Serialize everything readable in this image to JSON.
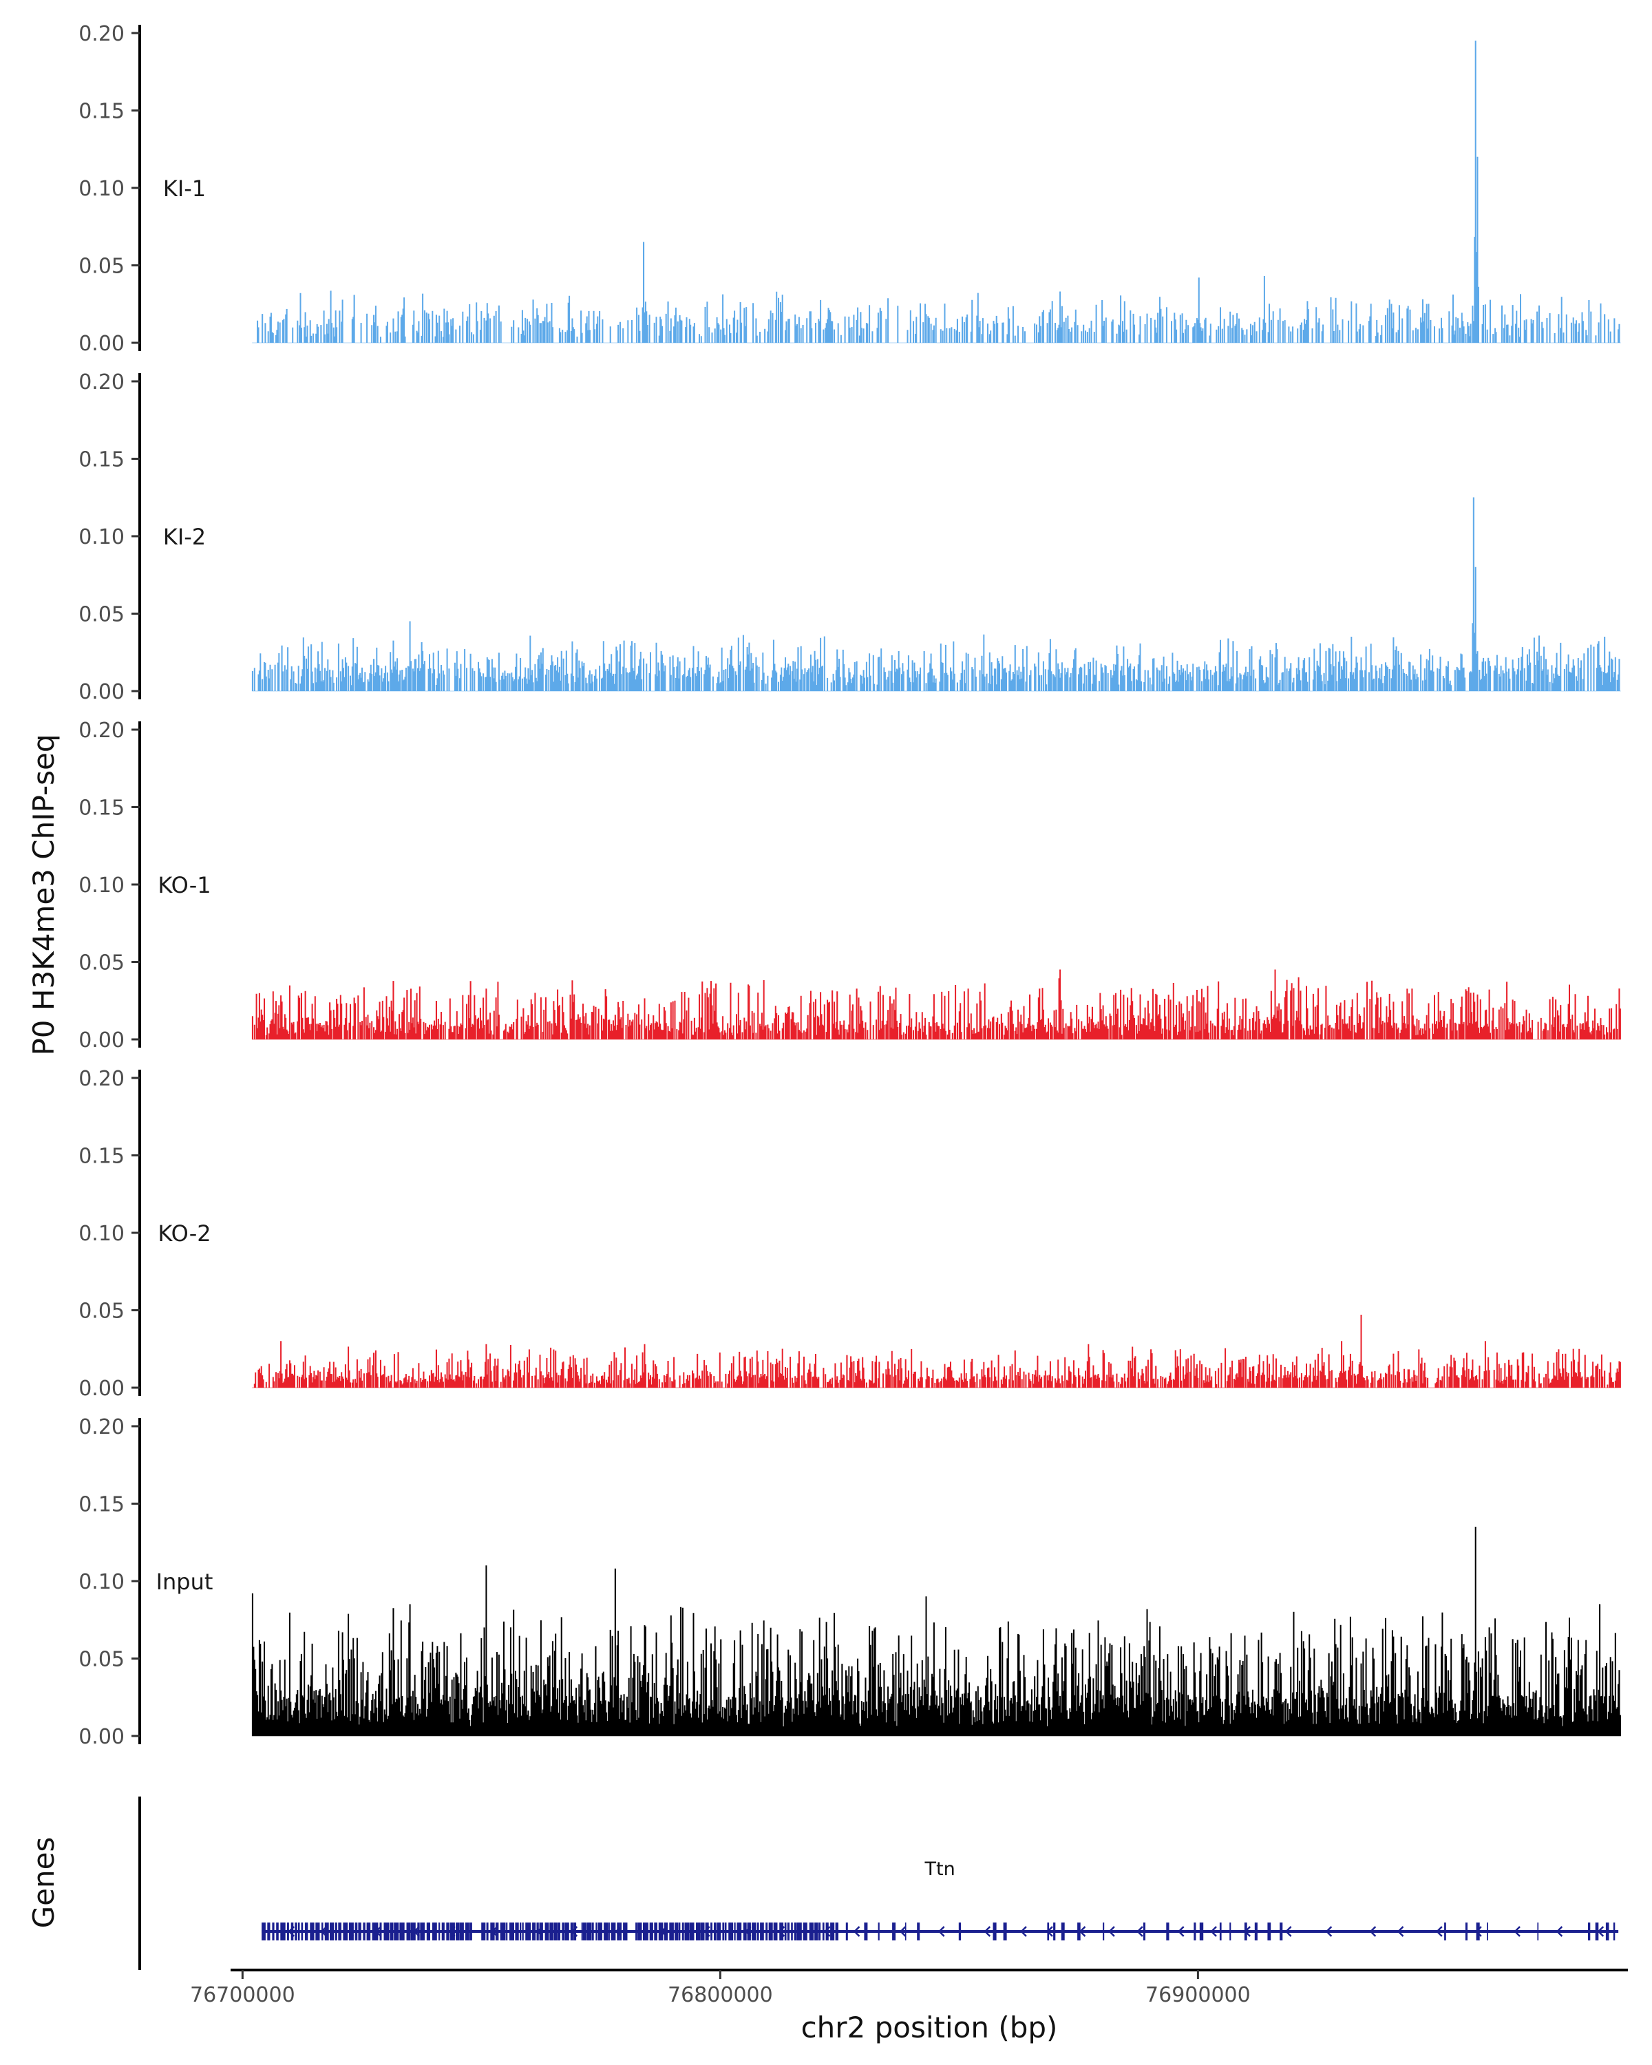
{
  "chart_data": {
    "type": "area",
    "title": "",
    "ylabel": "P0 H3K4me3 ChIP-seq",
    "xlabel": "chr2 position (bp)",
    "ylim": [
      0,
      0.2
    ],
    "y_ticks": [
      "0.00",
      "0.05",
      "0.10",
      "0.15",
      "0.20"
    ],
    "xlim": [
      76697500,
      76990000
    ],
    "x_ticks": [
      76700000,
      76800000,
      76900000
    ],
    "x_tick_labels": [
      "76700000",
      "76800000",
      "76900000"
    ],
    "data_range": [
      76702000,
      76988500
    ],
    "tracks": [
      {
        "name": "KI-1",
        "color": "#5da9e9",
        "baseline": 0.012,
        "noise_max": 0.02,
        "fill_density": 0.45,
        "peaks": [
          {
            "x": 76783800,
            "y": 0.065
          },
          {
            "x": 76900000,
            "y": 0.042
          },
          {
            "x": 76913800,
            "y": 0.043
          },
          {
            "x": 76958000,
            "y": 0.195
          },
          {
            "x": 76958400,
            "y": 0.12
          },
          {
            "x": 76871000,
            "y": 0.033
          },
          {
            "x": 76712000,
            "y": 0.032
          }
        ]
      },
      {
        "name": "KI-2",
        "color": "#5da9e9",
        "baseline": 0.012,
        "noise_max": 0.022,
        "fill_density": 0.7,
        "peaks": [
          {
            "x": 76735000,
            "y": 0.045
          },
          {
            "x": 76769000,
            "y": 0.032
          },
          {
            "x": 76811000,
            "y": 0.033
          },
          {
            "x": 76932000,
            "y": 0.035
          },
          {
            "x": 76957600,
            "y": 0.125
          },
          {
            "x": 76958100,
            "y": 0.08
          },
          {
            "x": 76985000,
            "y": 0.035
          }
        ]
      },
      {
        "name": "KO-1",
        "color": "#e8202a",
        "baseline": 0.008,
        "noise_max": 0.03,
        "fill_density": 0.8,
        "peaks": [
          {
            "x": 76769000,
            "y": 0.038
          },
          {
            "x": 76799000,
            "y": 0.036
          },
          {
            "x": 76871000,
            "y": 0.045
          },
          {
            "x": 76916000,
            "y": 0.045
          },
          {
            "x": 76921000,
            "y": 0.04
          },
          {
            "x": 76957000,
            "y": 0.03
          }
        ]
      },
      {
        "name": "KO-2",
        "color": "#e8202a",
        "baseline": 0.006,
        "noise_max": 0.02,
        "fill_density": 0.75,
        "peaks": [
          {
            "x": 76708000,
            "y": 0.03
          },
          {
            "x": 76751000,
            "y": 0.028
          },
          {
            "x": 76784000,
            "y": 0.028
          },
          {
            "x": 76813000,
            "y": 0.025
          },
          {
            "x": 76877000,
            "y": 0.028
          },
          {
            "x": 76930000,
            "y": 0.03
          },
          {
            "x": 76934000,
            "y": 0.047
          },
          {
            "x": 76960000,
            "y": 0.03
          }
        ]
      },
      {
        "name": "Input",
        "color": "#000000",
        "baseline": 0.02,
        "noise_max": 0.06,
        "fill_density": 1.0,
        "peaks": [
          {
            "x": 76702000,
            "y": 0.092
          },
          {
            "x": 76751000,
            "y": 0.11
          },
          {
            "x": 76778000,
            "y": 0.108
          },
          {
            "x": 76843000,
            "y": 0.09
          },
          {
            "x": 76958000,
            "y": 0.135
          },
          {
            "x": 76984000,
            "y": 0.085
          },
          {
            "x": 76735000,
            "y": 0.085
          },
          {
            "x": 76920000,
            "y": 0.08
          }
        ]
      }
    ],
    "genes_track": {
      "label": "Genes",
      "gene": {
        "name": "Ttn",
        "start": 76704000,
        "end": 76988000,
        "color": "#1a1f8f",
        "strand": "-"
      }
    }
  }
}
